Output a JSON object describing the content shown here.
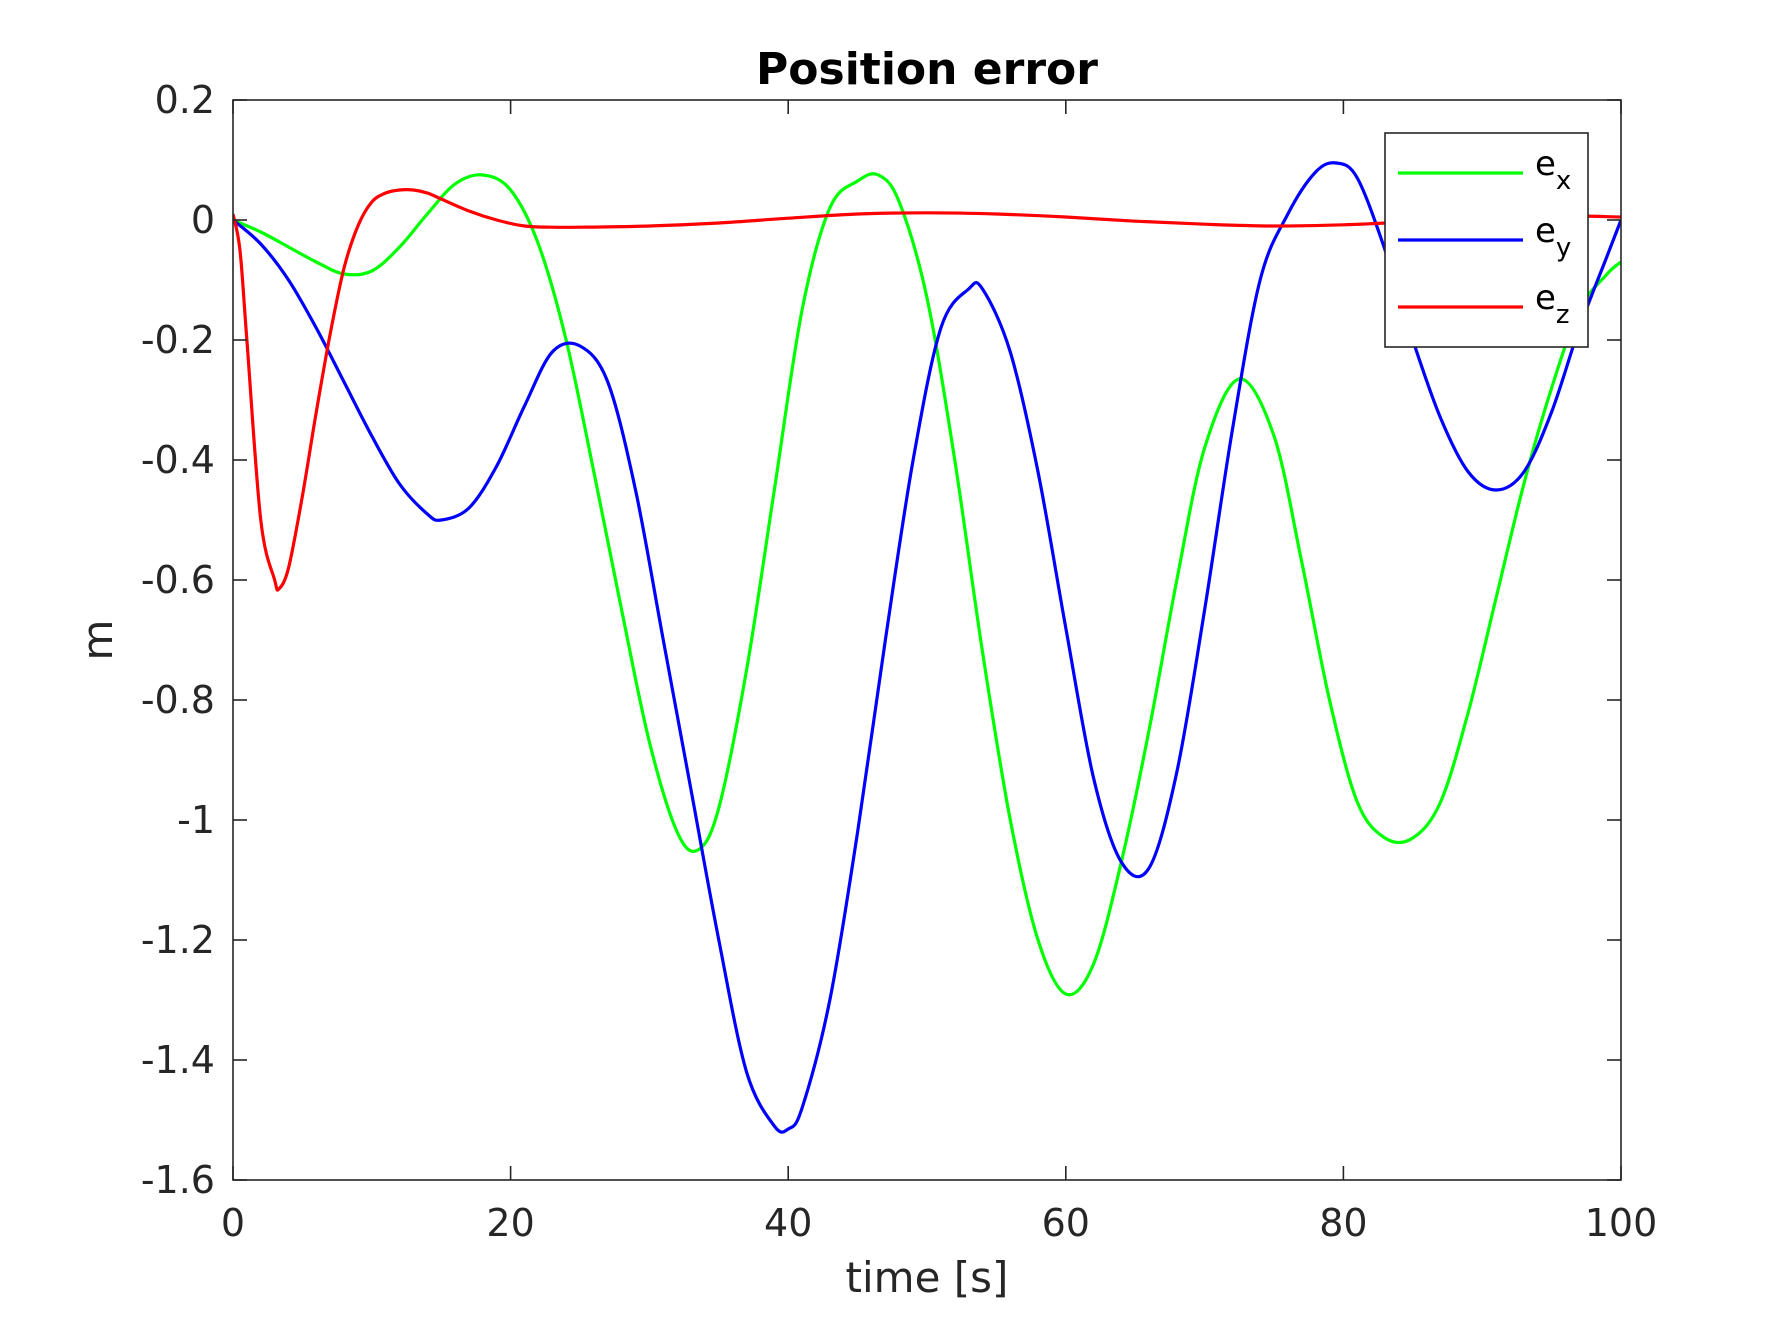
{
  "chart_data": {
    "type": "line",
    "title": "Position error",
    "xlabel": "time [s]",
    "ylabel": "m",
    "xlim": [
      0,
      100
    ],
    "ylim": [
      -1.6,
      0.2
    ],
    "xticks": [
      0,
      20,
      40,
      60,
      80,
      100
    ],
    "yticks": [
      0.2,
      0,
      -0.2,
      -0.4,
      -0.6,
      -0.8,
      -1,
      -1.2,
      -1.4,
      -1.6
    ],
    "grid": false,
    "legend_position": "top-right",
    "series": [
      {
        "name": "e_x",
        "label_base": "e",
        "label_sub": "x",
        "color": "#00ff00",
        "x": [
          0,
          2,
          4,
          6,
          8,
          10,
          12,
          14,
          16,
          18,
          20,
          22,
          24,
          26,
          28,
          30,
          32,
          33.5,
          35,
          37,
          39,
          41,
          43,
          45,
          46.5,
          48,
          50,
          52,
          54,
          56,
          58,
          60,
          62,
          64,
          66,
          68,
          70,
          72.5,
          75,
          77,
          79,
          81,
          83,
          85,
          87,
          89,
          91,
          93,
          95,
          97,
          99,
          100
        ],
        "y": [
          0,
          -0.02,
          -0.045,
          -0.07,
          -0.09,
          -0.085,
          -0.045,
          0.01,
          0.06,
          0.075,
          0.05,
          -0.04,
          -0.2,
          -0.42,
          -0.65,
          -0.87,
          -1.02,
          -1.05,
          -0.98,
          -0.75,
          -0.45,
          -0.15,
          0.02,
          0.065,
          0.075,
          0.03,
          -0.13,
          -0.4,
          -0.72,
          -1.0,
          -1.2,
          -1.29,
          -1.24,
          -1.07,
          -0.85,
          -0.6,
          -0.38,
          -0.265,
          -0.36,
          -0.57,
          -0.8,
          -0.97,
          -1.03,
          -1.03,
          -0.97,
          -0.82,
          -0.63,
          -0.44,
          -0.28,
          -0.15,
          -0.09,
          -0.07
        ]
      },
      {
        "name": "e_y",
        "label_base": "e",
        "label_sub": "y",
        "color": "#0000ff",
        "x": [
          0,
          2,
          4,
          6,
          8,
          10,
          12,
          14,
          15,
          17,
          19,
          21,
          23,
          25,
          27,
          29,
          31,
          33,
          35,
          37,
          39,
          40,
          41,
          43,
          45,
          47,
          49,
          51,
          53,
          54,
          56,
          58,
          60,
          62,
          64,
          66,
          68,
          70,
          72,
          74,
          76,
          78,
          79.5,
          81,
          83,
          85,
          87,
          89,
          91,
          93,
          95,
          97,
          99,
          100
        ],
        "y": [
          0,
          -0.04,
          -0.1,
          -0.18,
          -0.27,
          -0.36,
          -0.44,
          -0.49,
          -0.5,
          -0.48,
          -0.41,
          -0.31,
          -0.22,
          -0.21,
          -0.27,
          -0.45,
          -0.7,
          -0.95,
          -1.2,
          -1.42,
          -1.51,
          -1.515,
          -1.48,
          -1.3,
          -1.02,
          -0.7,
          -0.4,
          -0.18,
          -0.115,
          -0.115,
          -0.22,
          -0.42,
          -0.68,
          -0.93,
          -1.07,
          -1.08,
          -0.92,
          -0.65,
          -0.35,
          -0.1,
          0.01,
          0.08,
          0.095,
          0.07,
          -0.05,
          -0.2,
          -0.33,
          -0.42,
          -0.45,
          -0.42,
          -0.32,
          -0.18,
          -0.06,
          0.0
        ]
      },
      {
        "name": "e_z",
        "label_base": "e",
        "label_sub": "z",
        "color": "#ff0000",
        "x": [
          0,
          0.5,
          1,
          2,
          3,
          3.3,
          4,
          5,
          6,
          7,
          8,
          9,
          10,
          11,
          12,
          13,
          14,
          15,
          17,
          19,
          21,
          23,
          25,
          30,
          35,
          40,
          45,
          50,
          55,
          60,
          65,
          70,
          75,
          80,
          85,
          90,
          95,
          100
        ],
        "y": [
          0.01,
          -0.05,
          -0.2,
          -0.5,
          -0.6,
          -0.615,
          -0.58,
          -0.46,
          -0.32,
          -0.19,
          -0.08,
          -0.01,
          0.03,
          0.045,
          0.05,
          0.05,
          0.045,
          0.035,
          0.015,
          0.0,
          -0.01,
          -0.012,
          -0.012,
          -0.01,
          -0.005,
          0.003,
          0.01,
          0.012,
          0.01,
          0.005,
          -0.002,
          -0.007,
          -0.01,
          -0.008,
          -0.003,
          0.003,
          0.007,
          0.005
        ]
      }
    ]
  }
}
